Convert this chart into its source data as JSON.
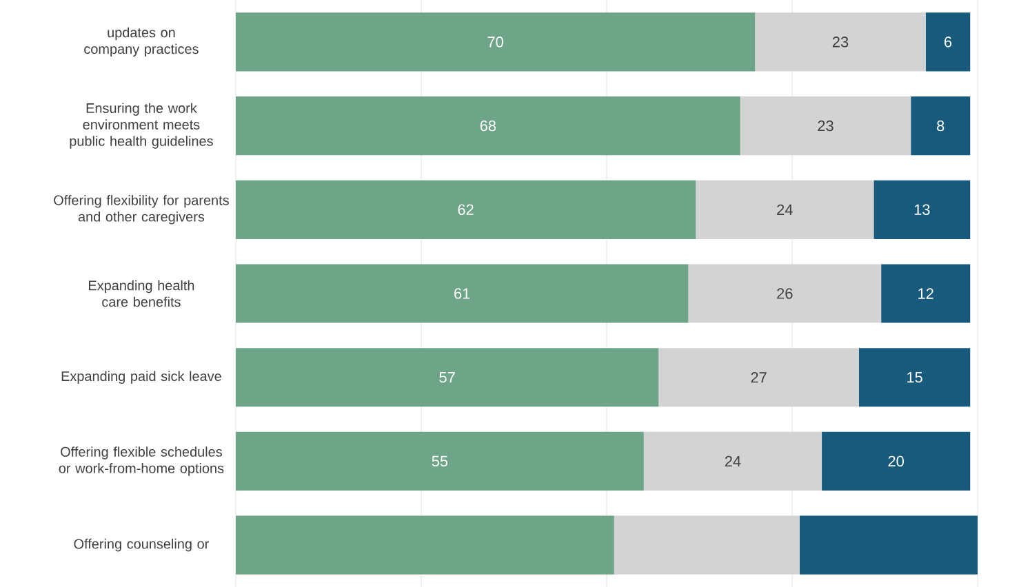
{
  "chart_data": {
    "type": "bar",
    "orientation": "horizontal",
    "stacked": true,
    "categories": [
      "updates on company practices",
      "Ensuring the work environment meets public health guidelines",
      "Offering flexibility for parents and other caregivers",
      "Expanding health care benefits",
      "Expanding paid sick leave",
      "Offering flexible schedules or work-from-home options",
      "Offering counseling or"
    ],
    "series": [
      {
        "color": "#6ea488",
        "values": [
          70,
          68,
          62,
          61,
          57,
          55,
          51
        ],
        "value_labels": [
          "70",
          "68",
          "62",
          "61",
          "57",
          "55",
          null
        ]
      },
      {
        "color": "#d3d3d3",
        "values": [
          23,
          23,
          24,
          26,
          27,
          24,
          25
        ],
        "value_labels": [
          "23",
          "23",
          "24",
          "26",
          "27",
          "24",
          null
        ]
      },
      {
        "color": "#175a7b",
        "values": [
          6,
          8,
          13,
          12,
          15,
          20,
          24
        ],
        "value_labels": [
          "6",
          "8",
          "13",
          "12",
          "15",
          "20",
          null
        ]
      }
    ],
    "xlim": [
      0,
      100
    ],
    "xticks": [
      {
        "value": 0,
        "label": null
      },
      {
        "value": 25,
        "label": null
      },
      {
        "value": 50,
        "label": null
      },
      {
        "value": 75,
        "label": null
      },
      {
        "value": 100,
        "label": null
      }
    ],
    "grid": "x",
    "tick_labels": "y"
  }
}
